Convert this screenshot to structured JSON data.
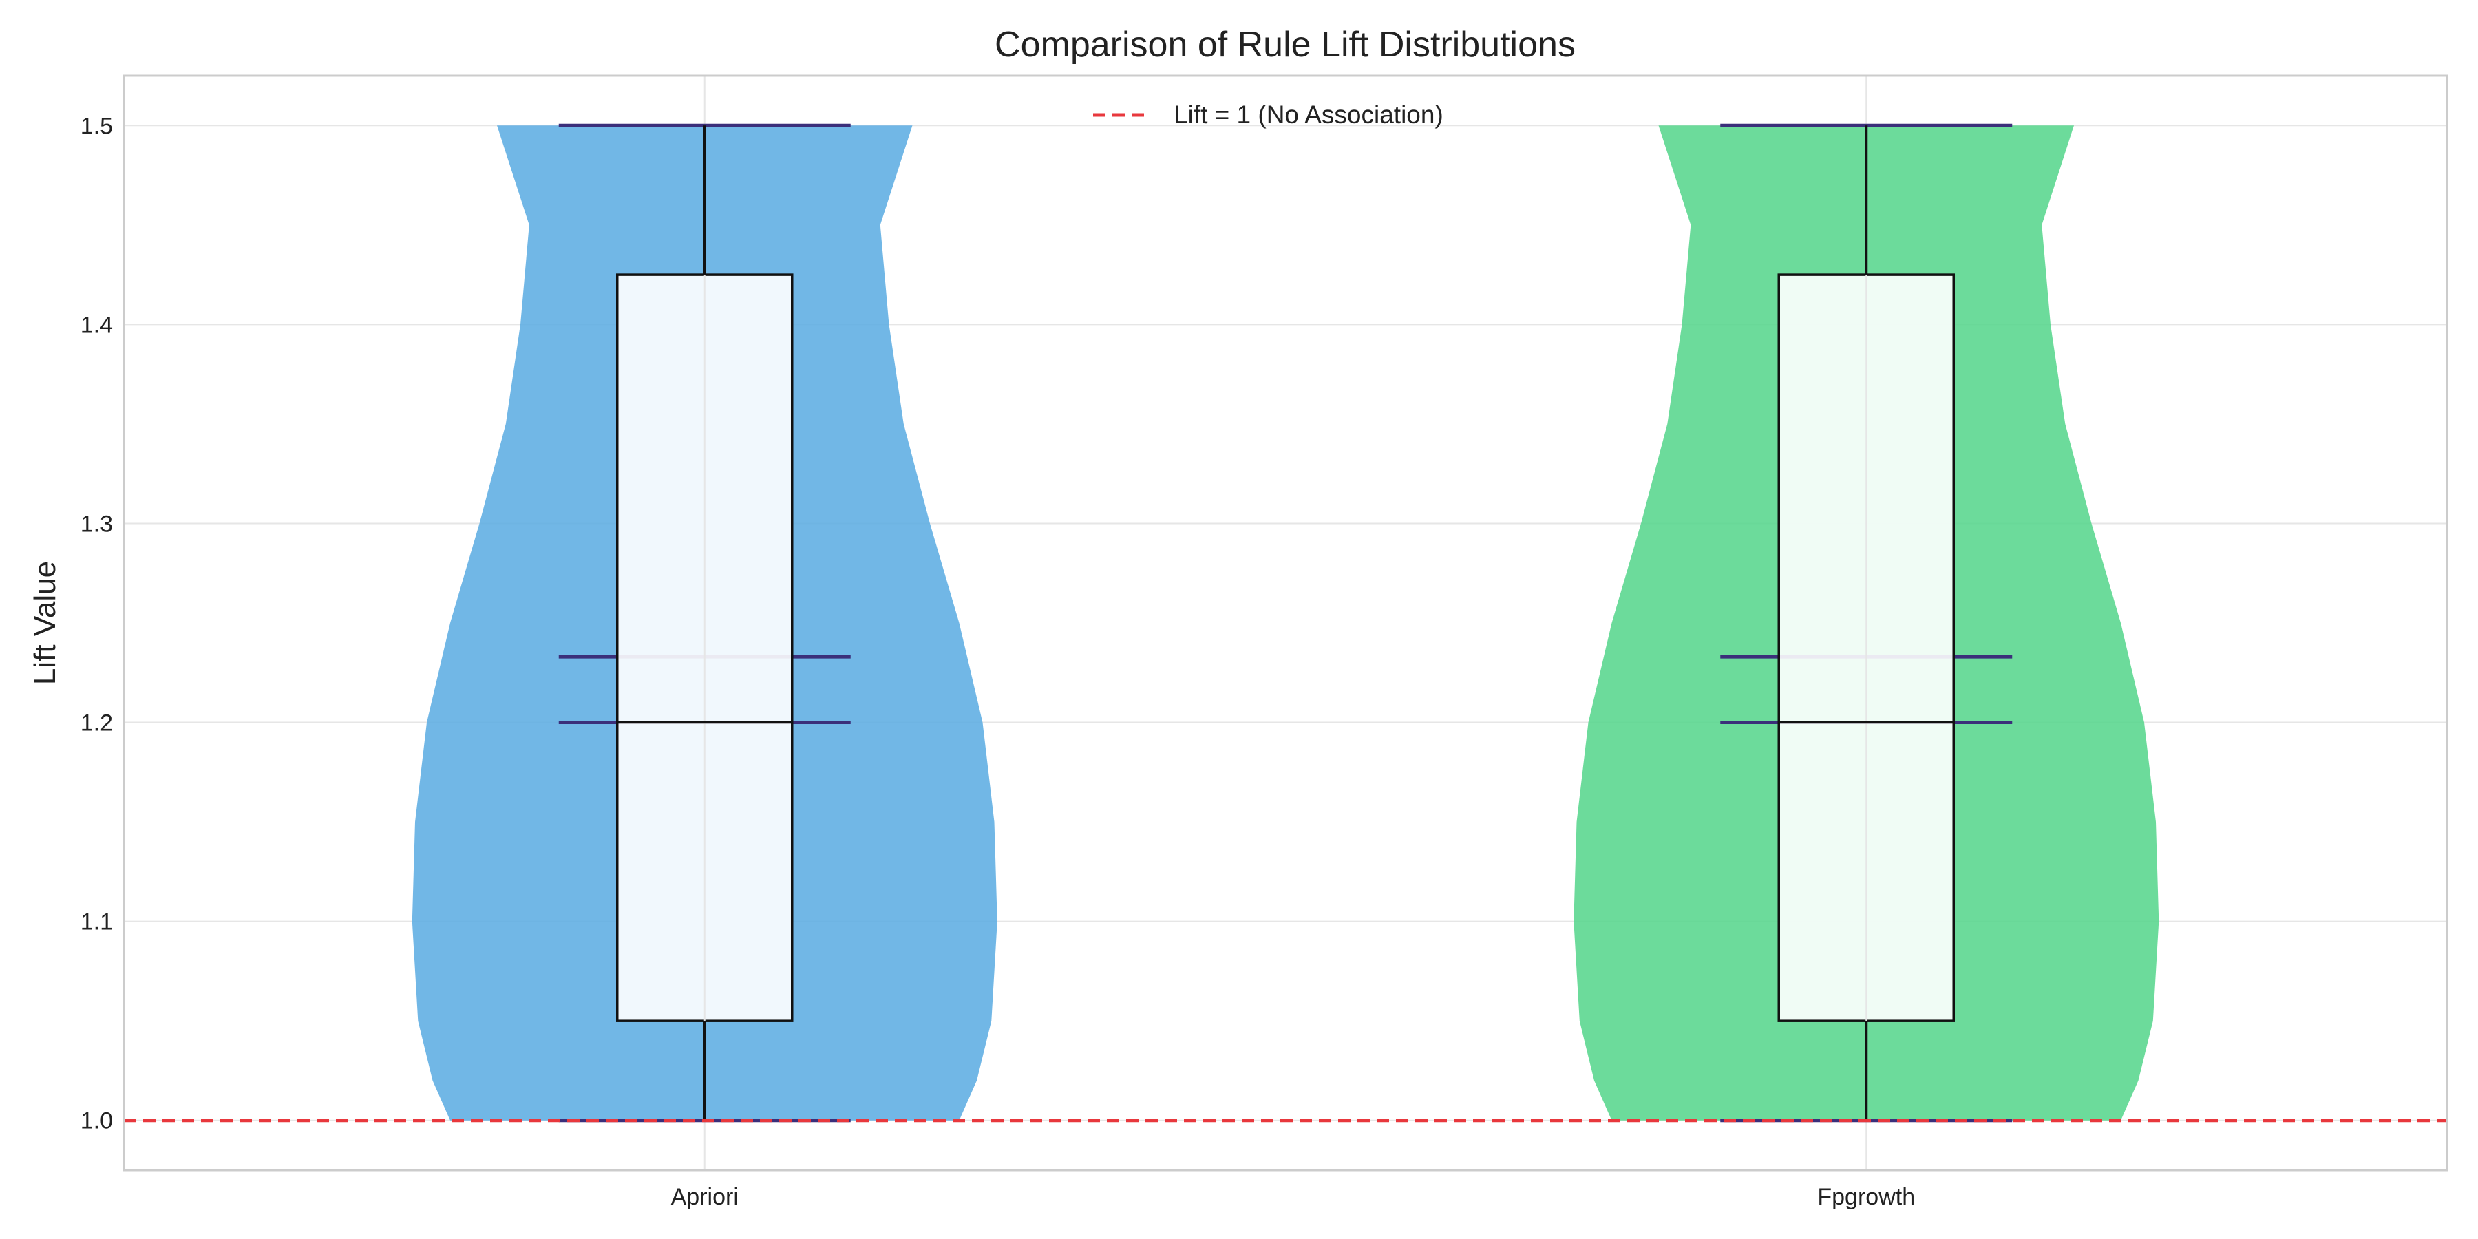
{
  "chart_data": {
    "type": "violin",
    "title": "Comparison of Rule Lift Distributions",
    "xlabel": "",
    "ylabel": "Lift Value",
    "ylim": [
      0.975,
      1.525
    ],
    "yticks": [
      1.0,
      1.1,
      1.2,
      1.3,
      1.4,
      1.5
    ],
    "ytick_labels": [
      "1.0",
      "1.1",
      "1.2",
      "1.3",
      "1.4",
      "1.5"
    ],
    "categories": [
      "Apriori",
      "Fpgrowth"
    ],
    "grid": true,
    "legend_position": "top-center",
    "series": [
      {
        "name": "Apriori",
        "color": "#5DADE2",
        "min": 1.0,
        "q1": 1.05,
        "median": 1.2,
        "mean": 1.233,
        "q3": 1.425,
        "max": 1.5,
        "density": [
          [
            1.0,
            0.87
          ],
          [
            1.02,
            0.93
          ],
          [
            1.05,
            0.98
          ],
          [
            1.1,
            1.0
          ],
          [
            1.15,
            0.99
          ],
          [
            1.2,
            0.95
          ],
          [
            1.25,
            0.87
          ],
          [
            1.3,
            0.77
          ],
          [
            1.35,
            0.68
          ],
          [
            1.4,
            0.63
          ],
          [
            1.45,
            0.6
          ],
          [
            1.5,
            0.71
          ]
        ]
      },
      {
        "name": "Fpgrowth",
        "color": "#58D68D",
        "min": 1.0,
        "q1": 1.05,
        "median": 1.2,
        "mean": 1.233,
        "q3": 1.425,
        "max": 1.5,
        "density": [
          [
            1.0,
            0.87
          ],
          [
            1.02,
            0.93
          ],
          [
            1.05,
            0.98
          ],
          [
            1.1,
            1.0
          ],
          [
            1.15,
            0.99
          ],
          [
            1.2,
            0.95
          ],
          [
            1.25,
            0.87
          ],
          [
            1.3,
            0.77
          ],
          [
            1.35,
            0.68
          ],
          [
            1.4,
            0.63
          ],
          [
            1.45,
            0.6
          ],
          [
            1.5,
            0.71
          ]
        ]
      }
    ],
    "reference_line": {
      "y": 1.0,
      "label": "Lift = 1 (No Association)",
      "color": "#E8383D"
    },
    "colors": {
      "box_edge": "#111111",
      "stat_line": "#3B2F7A",
      "grid": "#E6E6E6",
      "frame": "#CCCCCC"
    }
  }
}
